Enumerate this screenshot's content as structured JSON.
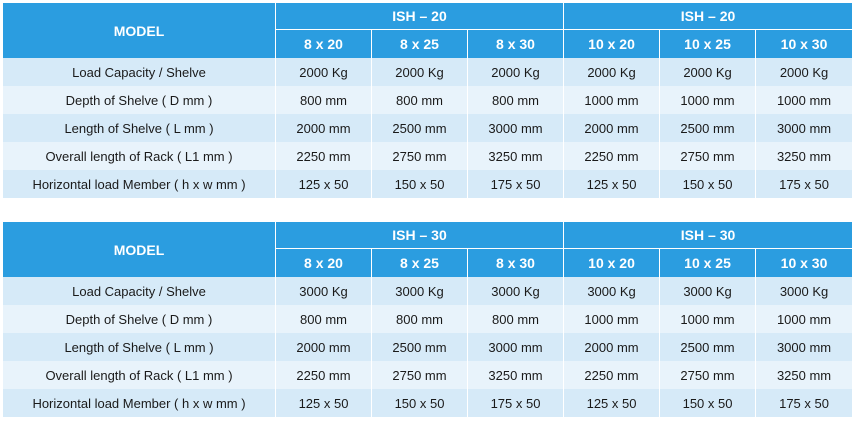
{
  "tables": [
    {
      "model_label": "MODEL",
      "groups": [
        "ISH – 20",
        "ISH – 20"
      ],
      "sizes": [
        "8 x 20",
        "8 x 25",
        "8 x 30",
        "10 x 20",
        "10 x 25",
        "10 x 30"
      ],
      "rows": [
        {
          "label": "Load Capacity / Shelve",
          "values": [
            "2000 Kg",
            "2000 Kg",
            "2000 Kg",
            "2000 Kg",
            "2000 Kg",
            "2000 Kg"
          ]
        },
        {
          "label": "Depth of Shelve ( D mm )",
          "values": [
            "800 mm",
            "800 mm",
            "800 mm",
            "1000 mm",
            "1000 mm",
            "1000 mm"
          ]
        },
        {
          "label": "Length of Shelve ( L mm )",
          "values": [
            "2000 mm",
            "2500 mm",
            "3000 mm",
            "2000 mm",
            "2500 mm",
            "3000 mm"
          ]
        },
        {
          "label": "Overall length of Rack ( L1 mm )",
          "values": [
            "2250 mm",
            "2750 mm",
            "3250 mm",
            "2250 mm",
            "2750 mm",
            "3250 mm"
          ]
        },
        {
          "label": "Horizontal load Member ( h x w mm )",
          "values": [
            "125 x 50",
            "150 x 50",
            "175 x 50",
            "125 x 50",
            "150 x 50",
            "175 x 50"
          ]
        }
      ]
    },
    {
      "model_label": "MODEL",
      "groups": [
        "ISH – 30",
        "ISH – 30"
      ],
      "sizes": [
        "8 x 20",
        "8 x 25",
        "8 x 30",
        "10 x 20",
        "10 x 25",
        "10 x 30"
      ],
      "rows": [
        {
          "label": "Load Capacity / Shelve",
          "values": [
            "3000 Kg",
            "3000 Kg",
            "3000 Kg",
            "3000 Kg",
            "3000 Kg",
            "3000 Kg"
          ]
        },
        {
          "label": "Depth of Shelve ( D mm )",
          "values": [
            "800 mm",
            "800 mm",
            "800 mm",
            "1000 mm",
            "1000 mm",
            "1000 mm"
          ]
        },
        {
          "label": "Length of Shelve ( L mm )",
          "values": [
            "2000 mm",
            "2500 mm",
            "3000 mm",
            "2000 mm",
            "2500 mm",
            "3000 mm"
          ]
        },
        {
          "label": "Overall length of Rack ( L1 mm )",
          "values": [
            "2250 mm",
            "2750 mm",
            "3250 mm",
            "2250 mm",
            "2750 mm",
            "3250 mm"
          ]
        },
        {
          "label": "Horizontal load Member ( h x w mm )",
          "values": [
            "125 x 50",
            "150 x 50",
            "175 x 50",
            "125 x 50",
            "150 x 50",
            "175 x 50"
          ]
        }
      ]
    }
  ],
  "colors": {
    "header_blue": "#2b9de0",
    "row_light": "#d6eaf8",
    "row_lighter": "#e8f3fb",
    "header_text": "#ffffff"
  }
}
